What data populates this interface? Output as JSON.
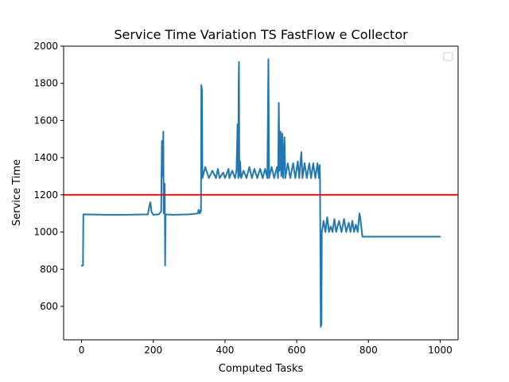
{
  "chart_data": {
    "type": "line",
    "title": "Service Time Variation TS FastFlow e Collector",
    "xlabel": "Computed Tasks",
    "ylabel": "Service Time",
    "xlim": [
      -50,
      1050
    ],
    "ylim": [
      420,
      2000
    ],
    "xticks": [
      0,
      200,
      400,
      600,
      800,
      1000
    ],
    "yticks": [
      600,
      800,
      1000,
      1200,
      1400,
      1600,
      1800,
      2000
    ],
    "grid": false,
    "legend": "top-right, empty",
    "colors": {
      "series": "#1f77b4",
      "reference": "#ff0000"
    },
    "reference_line": {
      "y": 1200
    },
    "series": [
      {
        "color": "#1f77b4",
        "points": [
          [
            0,
            820
          ],
          [
            4,
            820
          ],
          [
            5,
            1095
          ],
          [
            60,
            1093
          ],
          [
            120,
            1093
          ],
          [
            185,
            1095
          ],
          [
            190,
            1150
          ],
          [
            192,
            1160
          ],
          [
            195,
            1110
          ],
          [
            200,
            1093
          ],
          [
            215,
            1095
          ],
          [
            222,
            1110
          ],
          [
            224,
            1490
          ],
          [
            226,
            1300
          ],
          [
            228,
            1540
          ],
          [
            229,
            1100
          ],
          [
            232,
            1260
          ],
          [
            233,
            820
          ],
          [
            234,
            1095
          ],
          [
            255,
            1093
          ],
          [
            300,
            1095
          ],
          [
            325,
            1100
          ],
          [
            326,
            1120
          ],
          [
            330,
            1100
          ],
          [
            332,
            1120
          ],
          [
            333,
            1110
          ],
          [
            334,
            1790
          ],
          [
            336,
            1760
          ],
          [
            337,
            1290
          ],
          [
            345,
            1350
          ],
          [
            355,
            1290
          ],
          [
            365,
            1330
          ],
          [
            375,
            1290
          ],
          [
            380,
            1340
          ],
          [
            385,
            1290
          ],
          [
            395,
            1320
          ],
          [
            400,
            1290
          ],
          [
            410,
            1340
          ],
          [
            412,
            1290
          ],
          [
            420,
            1330
          ],
          [
            428,
            1290
          ],
          [
            432,
            1330
          ],
          [
            435,
            1580
          ],
          [
            436,
            1420
          ],
          [
            437,
            1290
          ],
          [
            438,
            1790
          ],
          [
            439,
            1915
          ],
          [
            440,
            1300
          ],
          [
            442,
            1380
          ],
          [
            445,
            1290
          ],
          [
            452,
            1330
          ],
          [
            460,
            1290
          ],
          [
            468,
            1350
          ],
          [
            475,
            1290
          ],
          [
            482,
            1340
          ],
          [
            490,
            1290
          ],
          [
            498,
            1340
          ],
          [
            505,
            1290
          ],
          [
            512,
            1340
          ],
          [
            518,
            1290
          ],
          [
            521,
            1930
          ],
          [
            523,
            1290
          ],
          [
            530,
            1350
          ],
          [
            537,
            1290
          ],
          [
            545,
            1350
          ],
          [
            548,
            1290
          ],
          [
            550,
            1695
          ],
          [
            552,
            1330
          ],
          [
            555,
            1540
          ],
          [
            557,
            1300
          ],
          [
            560,
            1530
          ],
          [
            562,
            1290
          ],
          [
            566,
            1510
          ],
          [
            568,
            1290
          ],
          [
            575,
            1370
          ],
          [
            582,
            1290
          ],
          [
            590,
            1370
          ],
          [
            596,
            1290
          ],
          [
            603,
            1380
          ],
          [
            607,
            1290
          ],
          [
            613,
            1430
          ],
          [
            616,
            1290
          ],
          [
            622,
            1370
          ],
          [
            628,
            1290
          ],
          [
            635,
            1370
          ],
          [
            640,
            1290
          ],
          [
            646,
            1370
          ],
          [
            652,
            1290
          ],
          [
            658,
            1370
          ],
          [
            662,
            1290
          ],
          [
            664,
            1360
          ],
          [
            665,
            1280
          ],
          [
            667,
            490
          ],
          [
            668,
            600
          ],
          [
            669,
            500
          ],
          [
            670,
            1000
          ],
          [
            675,
            1060
          ],
          [
            680,
            1000
          ],
          [
            685,
            1080
          ],
          [
            690,
            1000
          ],
          [
            695,
            1030
          ],
          [
            700,
            1000
          ],
          [
            705,
            1070
          ],
          [
            710,
            1000
          ],
          [
            718,
            1060
          ],
          [
            725,
            1000
          ],
          [
            732,
            1070
          ],
          [
            738,
            1000
          ],
          [
            745,
            1050
          ],
          [
            750,
            1000
          ],
          [
            755,
            1060
          ],
          [
            760,
            1000
          ],
          [
            765,
            1040
          ],
          [
            770,
            1000
          ],
          [
            775,
            1100
          ],
          [
            777,
            1080
          ],
          [
            780,
            1030
          ],
          [
            783,
            975
          ],
          [
            800,
            975
          ],
          [
            900,
            975
          ],
          [
            1000,
            975
          ]
        ]
      }
    ]
  }
}
